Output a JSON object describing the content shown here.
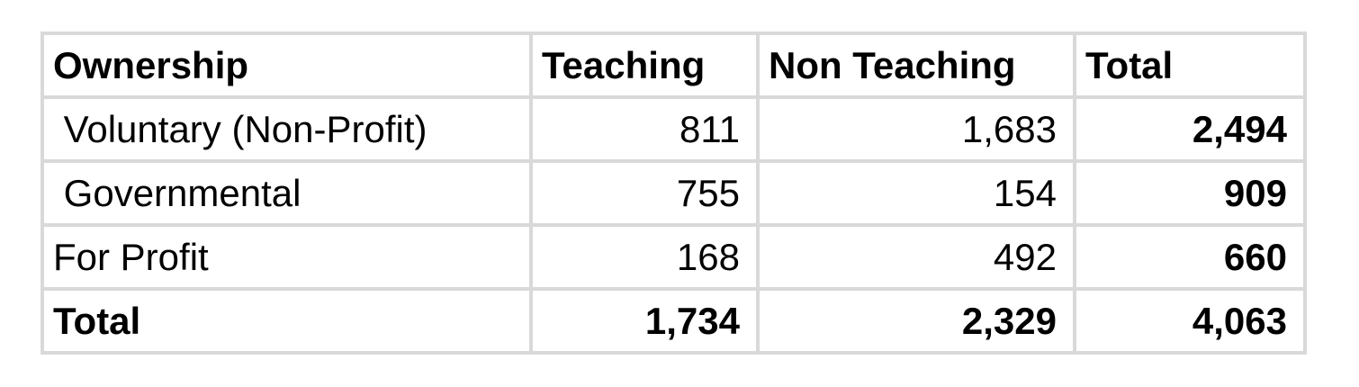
{
  "colors": {
    "border": "#d9d9d9",
    "text": "#000000",
    "background": "#ffffff"
  },
  "table": {
    "columns": [
      "Ownership",
      "Teaching",
      "Non Teaching",
      "Total"
    ],
    "rows": [
      {
        "cells": [
          " Voluntary (Non-Profit)",
          "811",
          "1,683",
          "2,494"
        ]
      },
      {
        "cells": [
          " Governmental",
          "755",
          "154",
          "909"
        ]
      },
      {
        "cells": [
          "For Profit",
          "168",
          "492",
          "660"
        ]
      },
      {
        "cells": [
          "Total",
          "1,734",
          "2,329",
          "4,063"
        ]
      }
    ]
  },
  "chart_data": {
    "type": "table",
    "title": "",
    "columns": [
      "Ownership",
      "Teaching",
      "Non Teaching",
      "Total"
    ],
    "rows": [
      {
        "ownership": "Voluntary (Non-Profit)",
        "teaching": 811,
        "non_teaching": 1683,
        "total": 2494
      },
      {
        "ownership": "Governmental",
        "teaching": 755,
        "non_teaching": 154,
        "total": 909
      },
      {
        "ownership": "For Profit",
        "teaching": 168,
        "non_teaching": 492,
        "total": 660
      },
      {
        "ownership": "Total",
        "teaching": 1734,
        "non_teaching": 2329,
        "total": 4063
      }
    ],
    "notes": "Header row bold; Total column bold; Total row bold; numeric cells right-aligned; light gray gridlines"
  }
}
